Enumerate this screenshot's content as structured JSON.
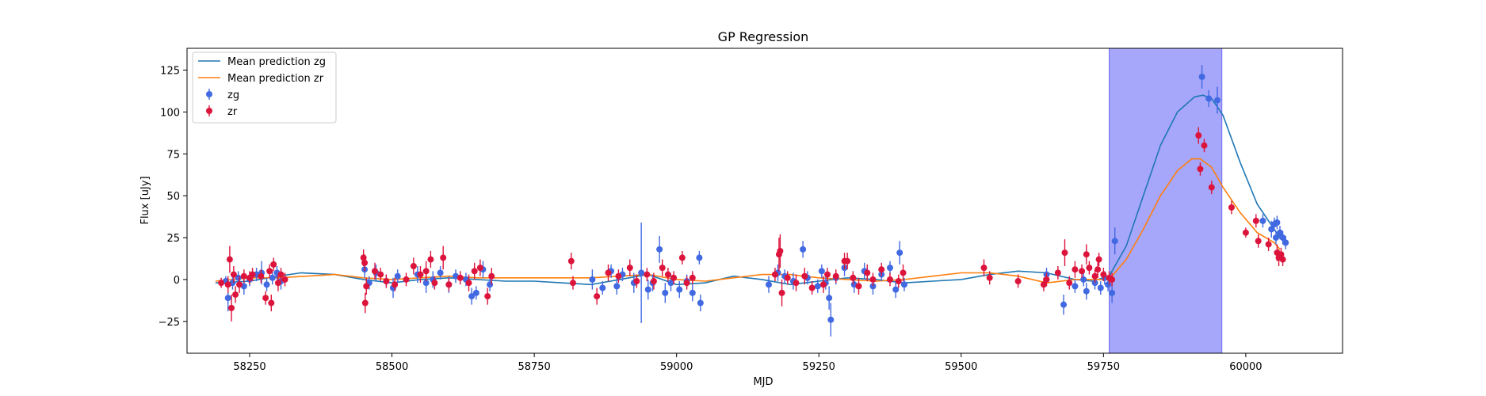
{
  "chart_data": {
    "type": "scatter",
    "title": "GP Regression",
    "xlabel": "MJD",
    "ylabel": "Flux [uJy]",
    "xlim": [
      58140,
      60170
    ],
    "ylim": [
      -44,
      138
    ],
    "xticks": [
      58250,
      58500,
      58750,
      59000,
      59250,
      59500,
      59750,
      60000
    ],
    "yticks": [
      -25,
      0,
      25,
      50,
      75,
      100,
      125
    ],
    "grid": false,
    "legend_position": "top-left",
    "highlight_span": {
      "x": [
        59760,
        59958
      ],
      "color": "#a6a6fb"
    },
    "lines": [
      {
        "name": "Mean prediction zg",
        "color": "#1f77b4",
        "x": [
          58190,
          58250,
          58300,
          58340,
          58400,
          58450,
          58500,
          58550,
          58600,
          58650,
          58700,
          58750,
          58800,
          58850,
          58900,
          58950,
          59000,
          59050,
          59100,
          59150,
          59200,
          59250,
          59300,
          59350,
          59400,
          59450,
          59500,
          59550,
          59600,
          59650,
          59700,
          59730,
          59760,
          59790,
          59820,
          59850,
          59880,
          59910,
          59925,
          59940,
          59960,
          59990,
          60020,
          60050,
          60060
        ],
        "y": [
          -2,
          -1,
          2,
          4,
          3,
          0,
          -2,
          0,
          1,
          0,
          -1,
          -1,
          -2,
          -3,
          0,
          3,
          -3,
          -2,
          2,
          0,
          -3,
          -1,
          1,
          0,
          -2,
          -1,
          0,
          3,
          5,
          4,
          0,
          -1,
          2,
          20,
          50,
          80,
          100,
          109,
          110,
          108,
          98,
          70,
          45,
          30,
          25
        ]
      },
      {
        "name": "Mean prediction zr",
        "color": "#ff7f0e",
        "x": [
          58190,
          58250,
          58300,
          58350,
          58400,
          58450,
          58500,
          58550,
          58600,
          58650,
          58700,
          58750,
          58800,
          58850,
          58900,
          58950,
          59000,
          59050,
          59100,
          59150,
          59200,
          59250,
          59300,
          59350,
          59400,
          59450,
          59500,
          59550,
          59600,
          59650,
          59700,
          59730,
          59760,
          59790,
          59820,
          59850,
          59880,
          59905,
          59920,
          59940,
          59960,
          59990,
          60020,
          60050,
          60060
        ],
        "y": [
          -1,
          1,
          1,
          2,
          3,
          1,
          0,
          1,
          2,
          1,
          1,
          1,
          1,
          1,
          2,
          3,
          0,
          -1,
          1,
          3,
          3,
          1,
          0,
          -1,
          0,
          2,
          4,
          4,
          2,
          -2,
          0,
          0,
          0,
          12,
          30,
          50,
          65,
          72,
          72,
          67,
          55,
          40,
          28,
          22,
          18
        ]
      }
    ],
    "series": [
      {
        "name": "zg",
        "color": "#4169e1",
        "points": [
          [
            58208,
            -1,
            3
          ],
          [
            58212,
            -11,
            8
          ],
          [
            58220,
            -2,
            4
          ],
          [
            58230,
            1,
            4
          ],
          [
            58240,
            -4,
            5
          ],
          [
            58250,
            0,
            4
          ],
          [
            58262,
            3,
            4
          ],
          [
            58271,
            4,
            7
          ],
          [
            58280,
            -3,
            4
          ],
          [
            58290,
            1,
            4
          ],
          [
            58298,
            4,
            4
          ],
          [
            58305,
            -1,
            5
          ],
          [
            58452,
            6,
            5
          ],
          [
            58460,
            -2,
            4
          ],
          [
            58472,
            4,
            5
          ],
          [
            58490,
            -1,
            4
          ],
          [
            58502,
            -5,
            6
          ],
          [
            58510,
            2,
            4
          ],
          [
            58545,
            3,
            5
          ],
          [
            58560,
            -2,
            6
          ],
          [
            58572,
            0,
            5
          ],
          [
            58585,
            4,
            4
          ],
          [
            58600,
            -3,
            5
          ],
          [
            58612,
            2,
            4
          ],
          [
            58630,
            0,
            4
          ],
          [
            58640,
            -10,
            5
          ],
          [
            58648,
            -8,
            4
          ],
          [
            58660,
            6,
            5
          ],
          [
            58672,
            -3,
            4
          ],
          [
            58852,
            0,
            6
          ],
          [
            58870,
            -5,
            4
          ],
          [
            58885,
            5,
            4
          ],
          [
            58895,
            -4,
            5
          ],
          [
            58905,
            3,
            4
          ],
          [
            58925,
            -2,
            6
          ],
          [
            58938,
            4,
            30
          ],
          [
            58950,
            -6,
            6
          ],
          [
            58958,
            -2,
            5
          ],
          [
            58970,
            18,
            8
          ],
          [
            58980,
            -8,
            6
          ],
          [
            58990,
            -2,
            5
          ],
          [
            59005,
            -6,
            5
          ],
          [
            59018,
            -1,
            4
          ],
          [
            59028,
            -8,
            5
          ],
          [
            59040,
            13,
            4
          ],
          [
            59042,
            -14,
            5
          ],
          [
            59162,
            -3,
            5
          ],
          [
            59178,
            4,
            5
          ],
          [
            59190,
            2,
            4
          ],
          [
            59205,
            -1,
            5
          ],
          [
            59222,
            18,
            5
          ],
          [
            59230,
            1,
            4
          ],
          [
            59248,
            -4,
            4
          ],
          [
            59255,
            5,
            4
          ],
          [
            59262,
            -2,
            4
          ],
          [
            59268,
            -11,
            7
          ],
          [
            59271,
            -24,
            10
          ],
          [
            59280,
            1,
            4
          ],
          [
            59295,
            7,
            5
          ],
          [
            59312,
            -3,
            5
          ],
          [
            59330,
            5,
            5
          ],
          [
            59345,
            -4,
            5
          ],
          [
            59360,
            3,
            4
          ],
          [
            59375,
            7,
            4
          ],
          [
            59385,
            -6,
            5
          ],
          [
            59392,
            16,
            7
          ],
          [
            59400,
            -3,
            4
          ],
          [
            59650,
            3,
            4
          ],
          [
            59680,
            -15,
            6
          ],
          [
            59700,
            -4,
            4
          ],
          [
            59715,
            0,
            4
          ],
          [
            59720,
            -7,
            5
          ],
          [
            59735,
            -2,
            4
          ],
          [
            59745,
            -5,
            4
          ],
          [
            59752,
            1,
            4
          ],
          [
            59758,
            -3,
            4
          ],
          [
            59765,
            -8,
            6
          ],
          [
            59770,
            23,
            8
          ],
          [
            59923,
            121,
            7
          ],
          [
            59935,
            108,
            5
          ],
          [
            59950,
            107,
            8
          ],
          [
            60030,
            35,
            4
          ],
          [
            60045,
            30,
            5
          ],
          [
            60050,
            33,
            4
          ],
          [
            60053,
            25,
            4
          ],
          [
            60055,
            34,
            4
          ],
          [
            60060,
            28,
            4
          ],
          [
            60065,
            25,
            4
          ],
          [
            60070,
            22,
            4
          ]
        ]
      },
      {
        "name": "zr",
        "color": "#dc143c",
        "points": [
          [
            58200,
            -2,
            3
          ],
          [
            58212,
            -3,
            5
          ],
          [
            58215,
            12,
            8
          ],
          [
            58218,
            -17,
            8
          ],
          [
            58222,
            3,
            5
          ],
          [
            58225,
            -9,
            5
          ],
          [
            58232,
            -3,
            5
          ],
          [
            58240,
            2,
            4
          ],
          [
            58250,
            1,
            4
          ],
          [
            58255,
            3,
            4
          ],
          [
            58270,
            2,
            4
          ],
          [
            58278,
            -11,
            4
          ],
          [
            58285,
            5,
            4
          ],
          [
            58288,
            -14,
            5
          ],
          [
            58292,
            9,
            4
          ],
          [
            58300,
            -2,
            5
          ],
          [
            58305,
            3,
            4
          ],
          [
            58312,
            0,
            4
          ],
          [
            58450,
            13,
            5
          ],
          [
            58452,
            10,
            5
          ],
          [
            58453,
            -14,
            6
          ],
          [
            58455,
            -4,
            5
          ],
          [
            58470,
            5,
            5
          ],
          [
            58480,
            3,
            4
          ],
          [
            58490,
            -1,
            4
          ],
          [
            58505,
            -3,
            4
          ],
          [
            58525,
            0,
            4
          ],
          [
            58538,
            8,
            5
          ],
          [
            58550,
            3,
            5
          ],
          [
            58560,
            5,
            6
          ],
          [
            58568,
            12,
            5
          ],
          [
            58575,
            -2,
            4
          ],
          [
            58590,
            13,
            7
          ],
          [
            58600,
            -3,
            4
          ],
          [
            58620,
            1,
            4
          ],
          [
            58635,
            -2,
            5
          ],
          [
            58645,
            5,
            5
          ],
          [
            58655,
            7,
            5
          ],
          [
            58668,
            -10,
            5
          ],
          [
            58675,
            2,
            5
          ],
          [
            58815,
            11,
            5
          ],
          [
            58818,
            -2,
            4
          ],
          [
            58860,
            -10,
            5
          ],
          [
            58880,
            4,
            5
          ],
          [
            58898,
            2,
            4
          ],
          [
            58918,
            7,
            5
          ],
          [
            58930,
            -1,
            4
          ],
          [
            58948,
            3,
            4
          ],
          [
            58960,
            -1,
            5
          ],
          [
            58975,
            7,
            5
          ],
          [
            58985,
            3,
            4
          ],
          [
            58995,
            1,
            4
          ],
          [
            59010,
            13,
            4
          ],
          [
            59018,
            -2,
            4
          ],
          [
            59028,
            1,
            4
          ],
          [
            59173,
            3,
            4
          ],
          [
            59180,
            15,
            10
          ],
          [
            59182,
            17,
            10
          ],
          [
            59185,
            -8,
            8
          ],
          [
            59195,
            1,
            4
          ],
          [
            59210,
            -2,
            5
          ],
          [
            59225,
            2,
            5
          ],
          [
            59238,
            -5,
            4
          ],
          [
            59258,
            -3,
            5
          ],
          [
            59265,
            3,
            4
          ],
          [
            59280,
            2,
            4
          ],
          [
            59295,
            11,
            5
          ],
          [
            59300,
            11,
            5
          ],
          [
            59310,
            1,
            4
          ],
          [
            59320,
            -4,
            5
          ],
          [
            59335,
            4,
            5
          ],
          [
            59345,
            0,
            4
          ],
          [
            59360,
            6,
            4
          ],
          [
            59375,
            0,
            4
          ],
          [
            59390,
            -1,
            4
          ],
          [
            59398,
            4,
            5
          ],
          [
            59540,
            7,
            5
          ],
          [
            59550,
            1,
            4
          ],
          [
            59600,
            -1,
            4
          ],
          [
            59645,
            -3,
            4
          ],
          [
            59650,
            0,
            4
          ],
          [
            59670,
            4,
            4
          ],
          [
            59682,
            16,
            8
          ],
          [
            59690,
            -2,
            4
          ],
          [
            59700,
            6,
            5
          ],
          [
            59712,
            5,
            4
          ],
          [
            59720,
            15,
            6
          ],
          [
            59725,
            7,
            4
          ],
          [
            59735,
            2,
            4
          ],
          [
            59740,
            6,
            5
          ],
          [
            59742,
            12,
            4
          ],
          [
            59750,
            3,
            4
          ],
          [
            59760,
            1,
            4
          ],
          [
            59765,
            0,
            4
          ],
          [
            59917,
            86,
            5
          ],
          [
            59920,
            66,
            4
          ],
          [
            59927,
            80,
            4
          ],
          [
            59940,
            55,
            4
          ],
          [
            59975,
            43,
            4
          ],
          [
            60000,
            28,
            3
          ],
          [
            60018,
            35,
            4
          ],
          [
            60022,
            23,
            4
          ],
          [
            60040,
            21,
            4
          ],
          [
            60055,
            16,
            5
          ],
          [
            60058,
            13,
            5
          ],
          [
            60062,
            15,
            4
          ],
          [
            60065,
            12,
            4
          ]
        ]
      }
    ]
  }
}
